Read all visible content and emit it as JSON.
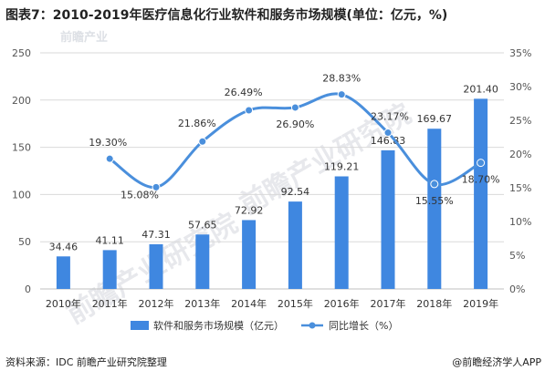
{
  "title": "图表7：2010-2019年医疗信息化行业软件和服务市场规模(单位：亿元，%)",
  "source": "资料来源：IDC 前瞻产业研究院整理",
  "brand": "@前瞻经济学人APP",
  "watermark": "前瞻产业研究院",
  "watermark_top": "前瞻产业",
  "colors": {
    "bar": "#3f87e0",
    "line": "#4a8fdc",
    "grid": "#d9d9d9",
    "axis_text": "#555555"
  },
  "chart_data": {
    "type": "bar",
    "categories": [
      "2010年",
      "2011年",
      "2012年",
      "2013年",
      "2014年",
      "2015年",
      "2016年",
      "2017年",
      "2018年",
      "2019年"
    ],
    "series": [
      {
        "name": "软件和服务市场规模（亿元）",
        "type": "bar",
        "axis": "left",
        "values": [
          34.46,
          41.11,
          47.31,
          57.65,
          72.92,
          92.54,
          119.21,
          146.83,
          169.67,
          201.4
        ],
        "labels": [
          "34.46",
          "41.11",
          "47.31",
          "57.65",
          "72.92",
          "92.54",
          "119.21",
          "146.83",
          "169.67",
          "201.40"
        ]
      },
      {
        "name": "同比增长（%）",
        "type": "line",
        "axis": "right",
        "values": [
          null,
          19.3,
          15.08,
          21.86,
          26.49,
          26.9,
          28.83,
          23.17,
          15.55,
          18.7
        ],
        "labels": [
          "",
          "19.30%",
          "15.08%",
          "21.86%",
          "26.49%",
          "26.90%",
          "28.83%",
          "23.17%",
          "15.55%",
          "18.70%"
        ]
      }
    ],
    "y_left": {
      "min": 0,
      "max": 250,
      "ticks": [
        0,
        50,
        100,
        150,
        200,
        250
      ],
      "tick_labels": [
        "0",
        "50",
        "100",
        "150",
        "200",
        "250"
      ]
    },
    "y_right": {
      "min": 0,
      "max": 35,
      "ticks": [
        0,
        5,
        10,
        15,
        20,
        25,
        30,
        35
      ],
      "tick_labels": [
        "0%",
        "5%",
        "10%",
        "15%",
        "20%",
        "25%",
        "30%",
        "35%"
      ]
    },
    "grid": true,
    "legend_position": "bottom"
  }
}
